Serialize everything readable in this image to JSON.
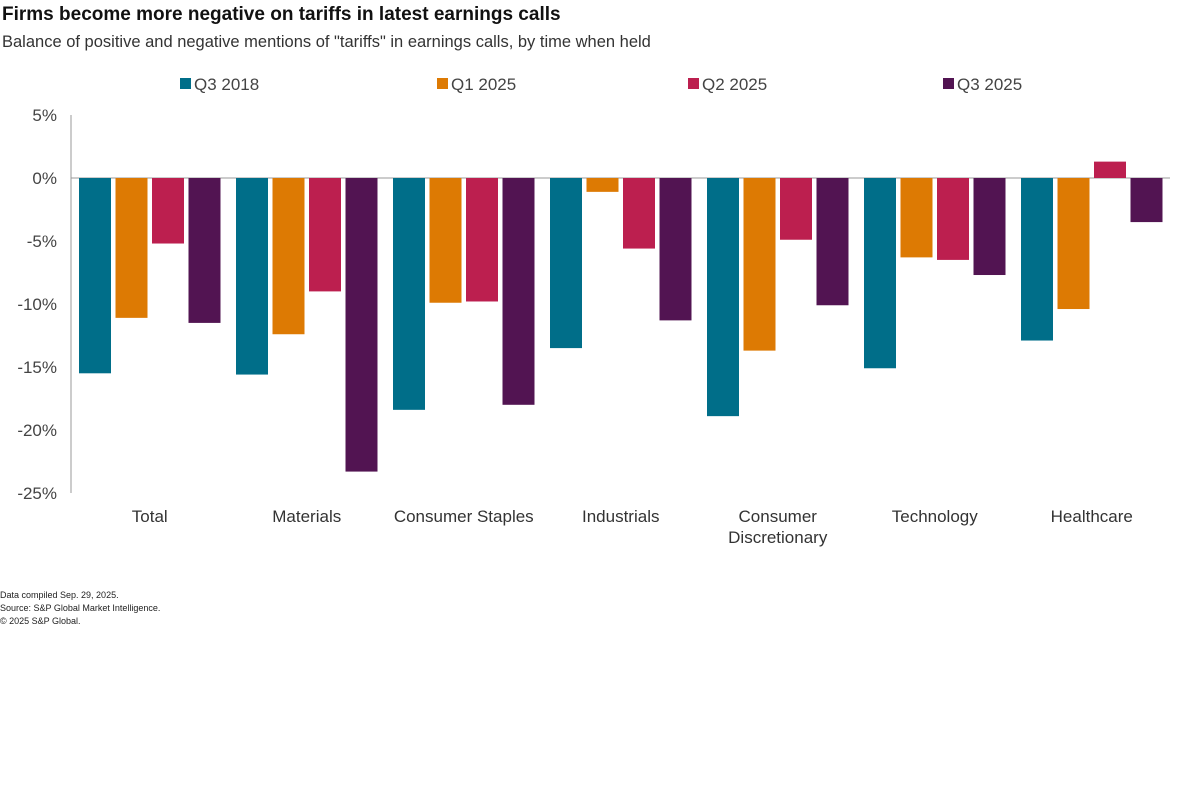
{
  "chart_data": {
    "type": "bar",
    "title": "Firms become more negative on tariffs in latest earnings calls",
    "subtitle": "Balance of positive and negative mentions of \"tariffs\" in earnings calls, by time when held",
    "categories": [
      "Total",
      "Materials",
      "Consumer Staples",
      "Industrials",
      "Consumer Discretionary",
      "Technology",
      "Healthcare"
    ],
    "series": [
      {
        "name": "Q3 2018",
        "color": "#006e89",
        "values": [
          -15.5,
          -15.6,
          -18.4,
          -13.5,
          -18.9,
          -15.1,
          -12.9
        ]
      },
      {
        "name": "Q1 2025",
        "color": "#dd7a03",
        "values": [
          -11.1,
          -12.4,
          -9.9,
          -1.1,
          -13.7,
          -6.3,
          -10.4
        ]
      },
      {
        "name": "Q2 2025",
        "color": "#bc1f4f",
        "values": [
          -5.2,
          -9.0,
          -9.8,
          -5.6,
          -4.9,
          -6.5,
          1.3
        ]
      },
      {
        "name": "Q3 2025",
        "color": "#521452",
        "values": [
          -11.5,
          -23.3,
          -18.0,
          -11.3,
          -10.1,
          -7.7,
          -3.5
        ]
      }
    ],
    "ylim": [
      -25,
      5
    ],
    "yticks": [
      "5%",
      "0%",
      "-5%",
      "-10%",
      "-15%",
      "-20%",
      "-25%"
    ],
    "ytick_values": [
      5,
      0,
      -5,
      -10,
      -15,
      -20,
      -25
    ],
    "grid": false,
    "legend": "top"
  },
  "footer": {
    "compiled": "Data compiled Sep. 29, 2025.",
    "source": "Source: S&P Global Market Intelligence.",
    "copyright": "© 2025 S&P Global."
  }
}
